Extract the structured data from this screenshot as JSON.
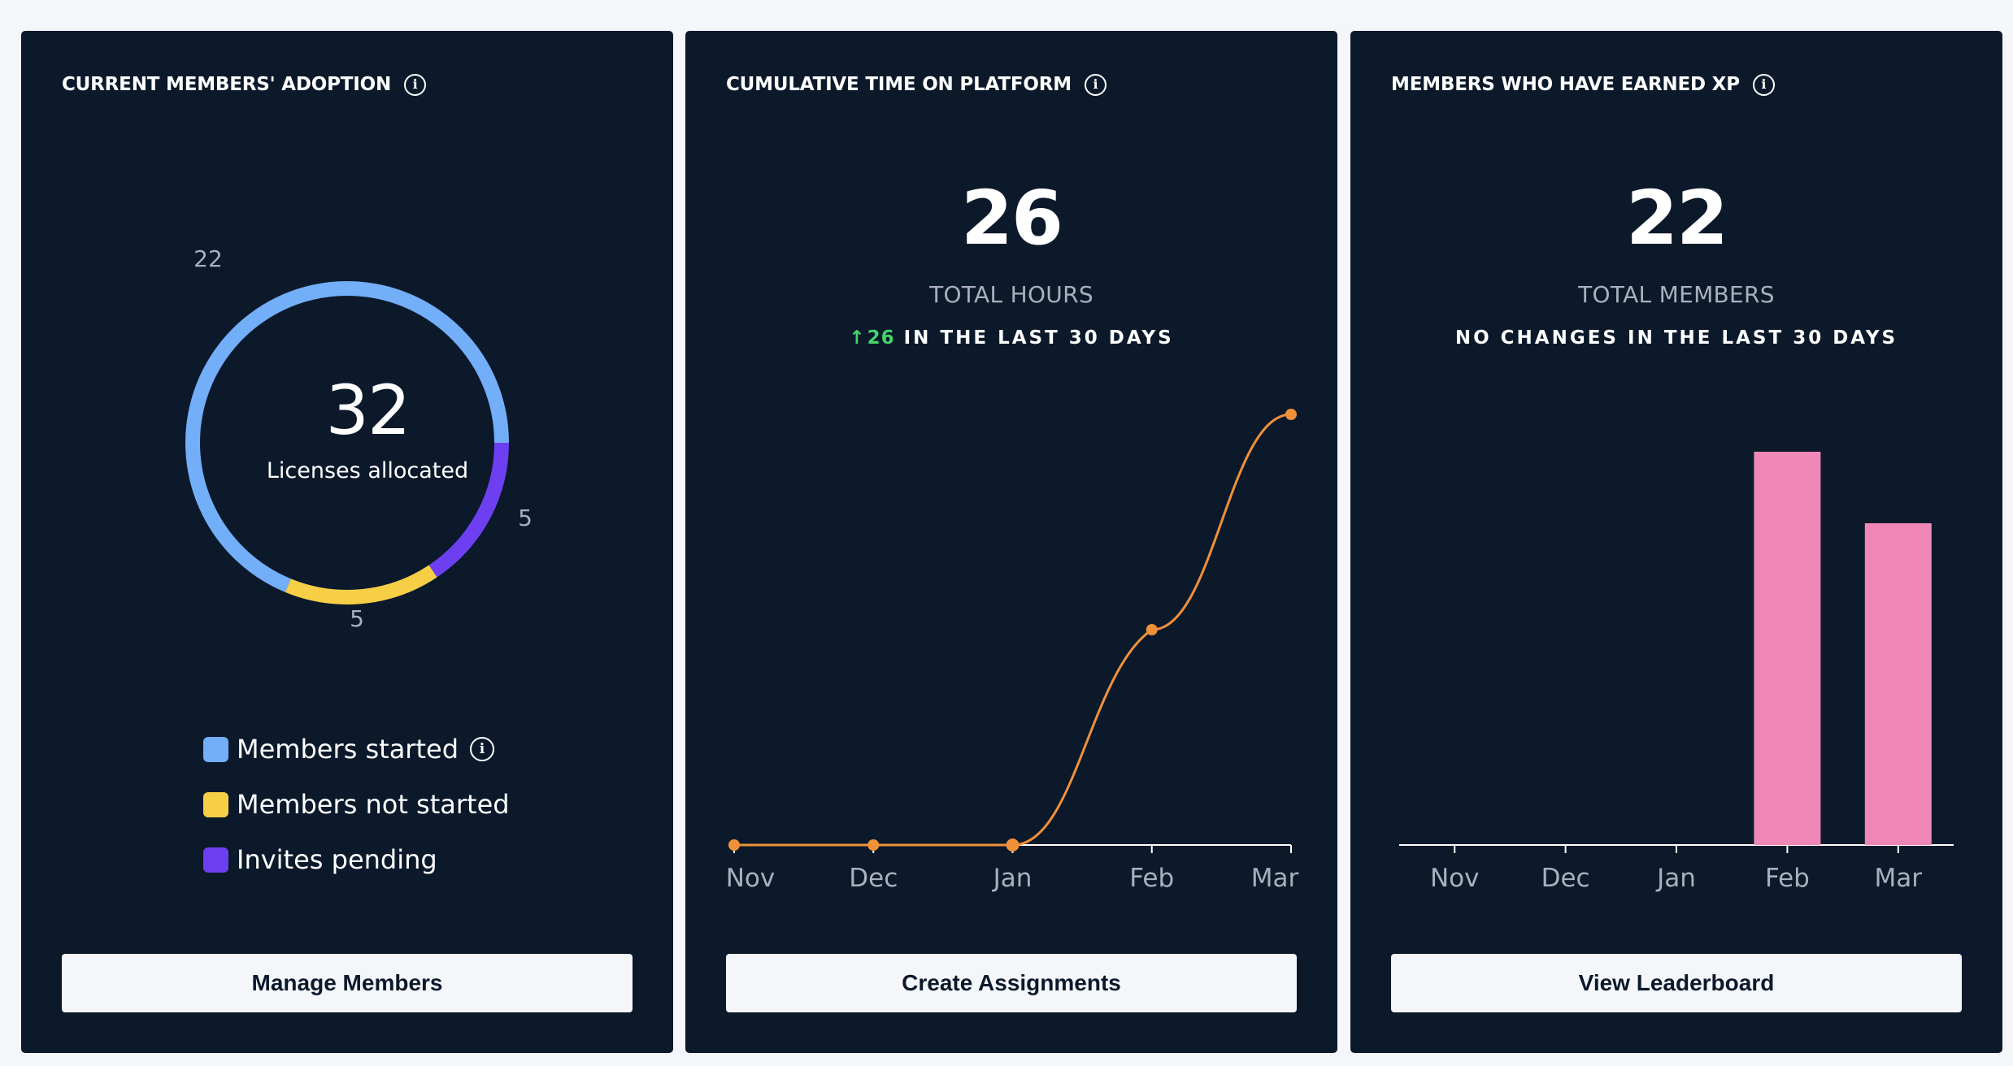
{
  "cards": {
    "adoption": {
      "title": "CURRENT MEMBERS' ADOPTION",
      "center_value": "32",
      "center_label": "Licenses allocated",
      "button_label": "Manage Members",
      "legend": [
        {
          "label": "Members started",
          "color": "#73aef8",
          "info_icon": "info-icon"
        },
        {
          "label": "Members not started",
          "color": "#f7cf46"
        },
        {
          "label": "Invites pending",
          "color": "#6e3ff0"
        }
      ]
    },
    "time": {
      "title": "CUMULATIVE TIME ON PLATFORM",
      "value": "26",
      "value_label": "TOTAL HOURS",
      "change_arrow": "↑",
      "change_value": "26",
      "change_text": "IN THE LAST 30 DAYS",
      "button_label": "Create Assignments"
    },
    "xp": {
      "title": "MEMBERS WHO HAVE EARNED XP",
      "value": "22",
      "value_label": "TOTAL MEMBERS",
      "change_text": "NO CHANGES IN THE LAST 30 DAYS",
      "button_label": "View Leaderboard"
    }
  },
  "chart_data": [
    {
      "type": "pie",
      "categories": [
        "Members started",
        "Members not started",
        "Invites pending"
      ],
      "values": [
        22,
        5,
        5
      ],
      "colors": [
        "#73aef8",
        "#f7cf46",
        "#6e3ff0"
      ],
      "data_labels": [
        "22",
        "5",
        "5"
      ]
    },
    {
      "type": "line",
      "categories": [
        "Nov",
        "Dec",
        "Jan",
        "Feb",
        "Mar"
      ],
      "series": [
        {
          "values": [
            0,
            0,
            0,
            11,
            22
          ],
          "color": "#f0913a"
        }
      ],
      "ylim": [
        0,
        22
      ],
      "grid": false
    },
    {
      "type": "bar",
      "categories": [
        "Nov",
        "Dec",
        "Jan",
        "Feb",
        "Mar"
      ],
      "values": [
        0,
        0,
        0,
        22,
        18
      ],
      "color": "#ef88b6",
      "ylim": [
        0,
        22
      ],
      "grid": false
    }
  ]
}
